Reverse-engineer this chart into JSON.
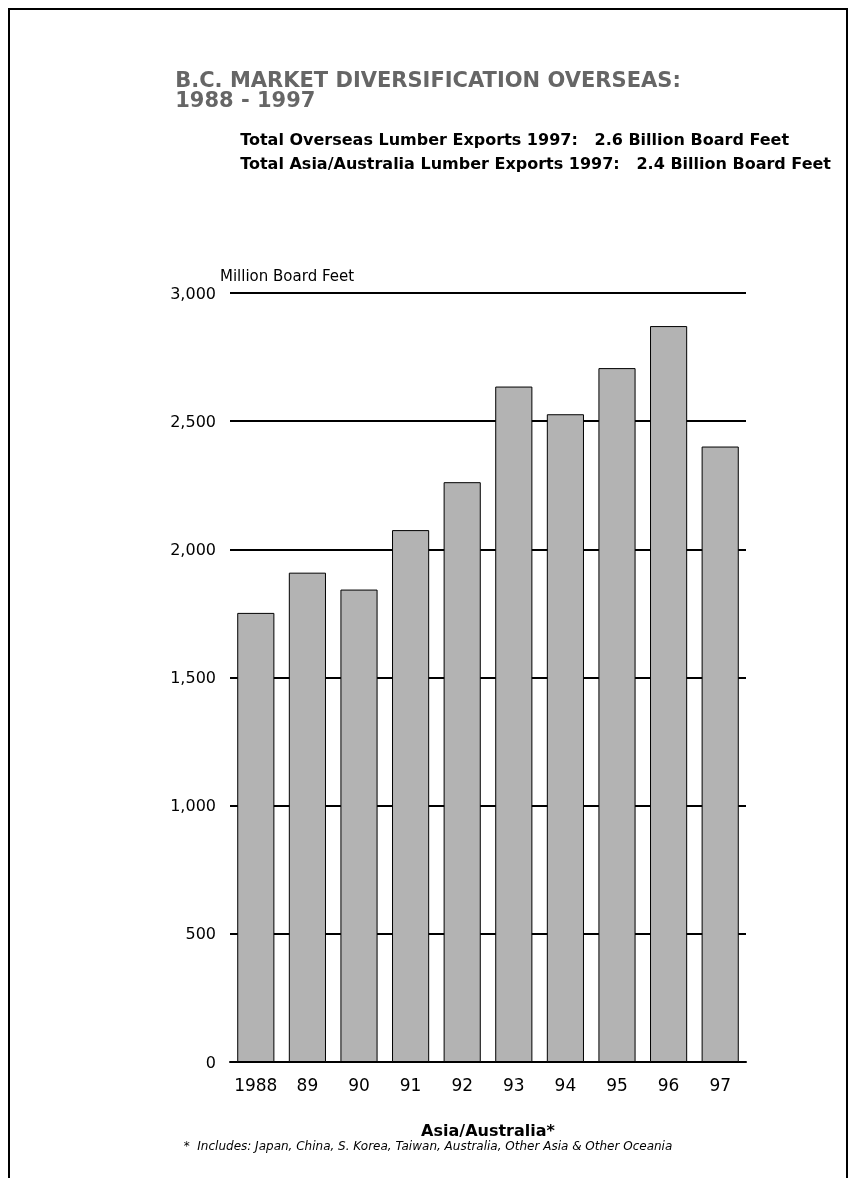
{
  "chart_data": {
    "type": "bar",
    "title": "B.C. MARKET DIVERSIFICATION OVERSEAS:\n1988 - 1997",
    "subtitle": "Total Overseas Lumber Exports 1997:   2.6 Billion Board Feet\nTotal Asia/Australia Lumber Exports 1997:   2.4 Billion Board Feet",
    "ylabel": "Million Board Feet",
    "xlabel": "Asia/Australia*",
    "categories": [
      "1988",
      "89",
      "90",
      "91",
      "92",
      "93",
      "94",
      "95",
      "96",
      "97"
    ],
    "values": [
      1752,
      1909,
      1843,
      2075,
      2262,
      2635,
      2527,
      2707,
      2871,
      2401
    ],
    "color": "#b3b3b3",
    "ylim": [
      0,
      3000
    ],
    "yticks": [
      0,
      500,
      {
        "value": 1000,
        "label": "1,000"
      },
      {
        "value": 1500,
        "label": "1,500"
      },
      {
        "value": 2000,
        "label": "2,000"
      },
      {
        "value": 2500,
        "label": "2,500"
      },
      {
        "value": 3000,
        "label": "3,000"
      }
    ],
    "grid": "y",
    "annotations": [
      "*  Includes: Japan, China, S. Korea, Taiwan, Australia, Other Asia & Other Oceania"
    ]
  }
}
